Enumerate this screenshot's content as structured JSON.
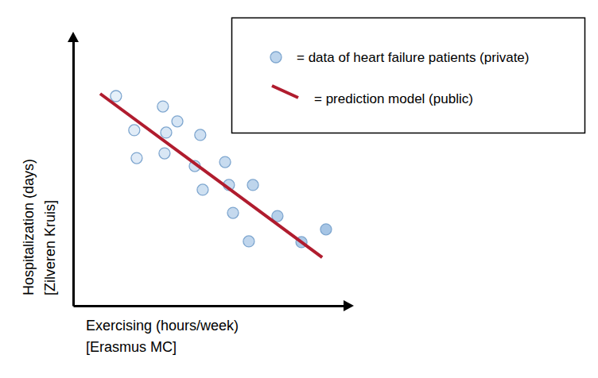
{
  "chart_data": {
    "type": "scatter",
    "x_label": [
      "Exercising (hours/week)",
      "[Erasmus MC]"
    ],
    "y_label": [
      "Hospitalization (days)",
      "[Zilveren Kruis]"
    ],
    "xlim": [
      0,
      10
    ],
    "ylim": [
      0,
      10
    ],
    "xticks": [],
    "yticks": [],
    "tick_labels": false,
    "grid": false,
    "legend": "top-right",
    "series": [
      {
        "name": "= data of heart failure patients (private)",
        "type": "scatter",
        "marker": "circle",
        "color": "#bcd4ec",
        "x": [
          1.57,
          2.24,
          2.33,
          3.29,
          3.41,
          3.35,
          3.82,
          4.66,
          4.46,
          4.75,
          5.57,
          5.71,
          6.59,
          5.86,
          6.44,
          7.49,
          8.37,
          9.27
        ],
        "values": [
          7.88,
          6.6,
          5.55,
          7.49,
          6.51,
          5.73,
          6.93,
          6.42,
          5.25,
          4.36,
          5.4,
          4.54,
          4.54,
          3.49,
          2.42,
          3.37,
          2.39,
          2.87
        ],
        "colors": [
          "#e6f0f9",
          "#e1ecf7",
          "#e0ebf7",
          "#dae8f5",
          "#d9e7f5",
          "#d9e7f5",
          "#d6e5f4",
          "#cfe0f2",
          "#d1e1f2",
          "#cee0f1",
          "#c7dbef",
          "#c6daef",
          "#bed5ec",
          "#c5d9ee",
          "#c0d6ed",
          "#b6d0ea",
          "#aecae7",
          "#a6c5e5"
        ]
      },
      {
        "name": "= prediction model (public)",
        "type": "line",
        "line_style": "solid",
        "color": "#b01c2e",
        "x": [
          0.99,
          9.13
        ],
        "values": [
          7.97,
          1.82
        ]
      }
    ]
  }
}
